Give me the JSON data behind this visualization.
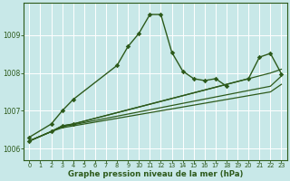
{
  "xlabel": "Graphe pression niveau de la mer (hPa)",
  "background_color": "#c8e8e8",
  "grid_color": "#ffffff",
  "line_color": "#2d5a1b",
  "xlim": [
    -0.5,
    23.5
  ],
  "ylim": [
    1005.7,
    1009.85
  ],
  "yticks": [
    1006,
    1007,
    1008,
    1009
  ],
  "xticks": [
    0,
    1,
    2,
    3,
    4,
    5,
    6,
    7,
    8,
    9,
    10,
    11,
    12,
    13,
    14,
    15,
    16,
    17,
    18,
    19,
    20,
    21,
    22,
    23
  ],
  "line1": {
    "x": [
      0,
      2,
      3,
      4,
      8,
      9,
      10,
      11,
      12,
      13,
      14,
      15,
      16,
      17,
      18
    ],
    "y": [
      1006.3,
      1006.65,
      1007.0,
      1007.3,
      1008.2,
      1008.7,
      1009.05,
      1009.55,
      1009.55,
      1008.55,
      1008.05,
      1007.85,
      1007.8,
      1007.85,
      1007.65
    ]
  },
  "line2": {
    "x": [
      0,
      2,
      3,
      4,
      22,
      23
    ],
    "y": [
      1006.2,
      1006.45,
      1006.55,
      1006.6,
      1007.5,
      1007.7
    ]
  },
  "line3": {
    "x": [
      0,
      2,
      3,
      4,
      22,
      23
    ],
    "y": [
      1006.2,
      1006.45,
      1006.58,
      1006.63,
      1007.65,
      1007.92
    ]
  },
  "line4": {
    "x": [
      0,
      2,
      3,
      4,
      22,
      23
    ],
    "y": [
      1006.2,
      1006.45,
      1006.6,
      1006.65,
      1008.0,
      1008.1
    ]
  },
  "line5": {
    "x": [
      0,
      2,
      3,
      4,
      20,
      21,
      22,
      23
    ],
    "y": [
      1006.2,
      1006.45,
      1006.6,
      1006.65,
      1007.85,
      1008.42,
      1008.52,
      1007.98
    ]
  }
}
